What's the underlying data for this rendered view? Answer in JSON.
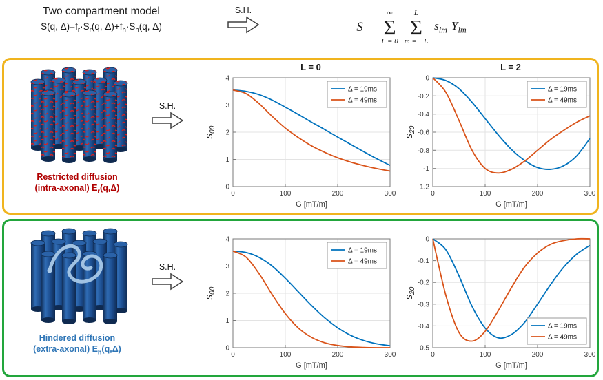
{
  "header": {
    "title": "Two compartment model",
    "model_eq": {
      "p1": "S(q, Δ)=f",
      "s1": "r",
      "p2": "·S",
      "s2": "r",
      "p3": "(q, Δ)+f",
      "s3": "h",
      "p4": "·S",
      "s4": "h",
      "p5": "(q, Δ)"
    },
    "sh_label": "S.H.",
    "sum_eq": {
      "lhs": "S =",
      "sigma": "Σ",
      "sum1_top": "∞",
      "sum1_bot": "L = 0",
      "sum2_top": "L",
      "sum2_bot": "m = −L",
      "t1": "s",
      "t1s": "lm",
      "t2": "Y",
      "t2s": "lm"
    }
  },
  "rows": [
    {
      "sh_label": "S.H.",
      "caption": {
        "line1": "Restricted diffusion",
        "line2_pre": "(intra-axonal) E",
        "line2_sub": "r",
        "line2_post": "(q,Δ)"
      },
      "colors": {
        "border": "#f0b41e",
        "caption": "#b00000"
      }
    },
    {
      "sh_label": "S.H.",
      "caption": {
        "line1": "Hindered diffusion",
        "line2_pre": "(extra-axonal) E",
        "line2_sub": "h",
        "line2_post": "(q,Δ)"
      },
      "colors": {
        "border": "#22a63c",
        "caption": "#2e75b6"
      }
    }
  ],
  "chart_data": [
    {
      "type": "line",
      "title": "L = 0",
      "xlabel": "G [mT/m]",
      "ylabel": {
        "base": "s",
        "sub": "00"
      },
      "xlim": [
        0,
        300
      ],
      "ylim": [
        0,
        4
      ],
      "xticks": [
        0,
        100,
        200,
        300
      ],
      "yticks": [
        0,
        1,
        2,
        3,
        4
      ],
      "grid": true,
      "legend_pos": "top-right",
      "x": [
        0,
        25,
        50,
        75,
        100,
        125,
        150,
        175,
        200,
        225,
        250,
        275,
        300
      ],
      "series": [
        {
          "name": "Δ = 19ms",
          "color": "#0072BD",
          "y": [
            3.55,
            3.5,
            3.38,
            3.18,
            2.92,
            2.65,
            2.37,
            2.1,
            1.82,
            1.55,
            1.28,
            1.02,
            0.78
          ]
        },
        {
          "name": "Δ = 49ms",
          "color": "#D95319",
          "y": [
            3.55,
            3.42,
            3.05,
            2.58,
            2.15,
            1.8,
            1.5,
            1.26,
            1.06,
            0.9,
            0.77,
            0.66,
            0.57
          ]
        }
      ]
    },
    {
      "type": "line",
      "title": "L = 2",
      "xlabel": "G [mT/m]",
      "ylabel": {
        "base": "s",
        "sub": "20"
      },
      "xlim": [
        0,
        300
      ],
      "ylim": [
        -1.2,
        0
      ],
      "xticks": [
        0,
        100,
        200,
        300
      ],
      "yticks": [
        0,
        -0.2,
        -0.4,
        -0.6,
        -0.8,
        -1,
        -1.2
      ],
      "grid": true,
      "legend_pos": "top-right",
      "x": [
        0,
        25,
        50,
        75,
        100,
        125,
        150,
        175,
        200,
        225,
        250,
        275,
        300
      ],
      "series": [
        {
          "name": "Δ = 19ms",
          "color": "#0072BD",
          "y": [
            0,
            -0.03,
            -0.12,
            -0.27,
            -0.45,
            -0.63,
            -0.79,
            -0.91,
            -0.99,
            -1.01,
            -0.97,
            -0.86,
            -0.67
          ]
        },
        {
          "name": "Δ = 49ms",
          "color": "#D95319",
          "y": [
            0,
            -0.16,
            -0.47,
            -0.8,
            -1.0,
            -1.05,
            -1.01,
            -0.92,
            -0.8,
            -0.68,
            -0.58,
            -0.49,
            -0.42
          ]
        }
      ]
    },
    {
      "type": "line",
      "title": "",
      "xlabel": "G [mT/m]",
      "ylabel": {
        "base": "s",
        "sub": "00"
      },
      "xlim": [
        0,
        300
      ],
      "ylim": [
        0,
        4
      ],
      "xticks": [
        0,
        100,
        200,
        300
      ],
      "yticks": [
        0,
        1,
        2,
        3,
        4
      ],
      "grid": true,
      "legend_pos": "top-right",
      "x": [
        0,
        25,
        50,
        75,
        100,
        125,
        150,
        175,
        200,
        225,
        250,
        275,
        300
      ],
      "series": [
        {
          "name": "Δ = 19ms",
          "color": "#0072BD",
          "y": [
            3.55,
            3.5,
            3.32,
            3.0,
            2.55,
            2.05,
            1.55,
            1.1,
            0.73,
            0.45,
            0.26,
            0.14,
            0.07
          ]
        },
        {
          "name": "Δ = 49ms",
          "color": "#D95319",
          "y": [
            3.55,
            3.33,
            2.72,
            1.95,
            1.25,
            0.72,
            0.38,
            0.18,
            0.08,
            0.03,
            0.01,
            0.0,
            0.0
          ]
        }
      ]
    },
    {
      "type": "line",
      "title": "",
      "xlabel": "G [mT/m]",
      "ylabel": {
        "base": "s",
        "sub": "20"
      },
      "xlim": [
        0,
        300
      ],
      "ylim": [
        -0.5,
        0
      ],
      "xticks": [
        0,
        100,
        200,
        300
      ],
      "yticks": [
        0,
        -0.1,
        -0.2,
        -0.3,
        -0.4,
        -0.5
      ],
      "grid": true,
      "legend_pos": "bottom-right",
      "x": [
        0,
        25,
        50,
        75,
        100,
        125,
        150,
        175,
        200,
        225,
        250,
        275,
        300
      ],
      "series": [
        {
          "name": "Δ = 19ms",
          "color": "#0072BD",
          "y": [
            0,
            -0.05,
            -0.17,
            -0.31,
            -0.41,
            -0.455,
            -0.44,
            -0.385,
            -0.3,
            -0.21,
            -0.13,
            -0.07,
            -0.03
          ]
        },
        {
          "name": "Δ = 49ms",
          "color": "#D95319",
          "y": [
            0,
            -0.26,
            -0.43,
            -0.47,
            -0.425,
            -0.33,
            -0.225,
            -0.13,
            -0.065,
            -0.025,
            -0.008,
            0.0,
            0.0
          ]
        }
      ]
    }
  ]
}
